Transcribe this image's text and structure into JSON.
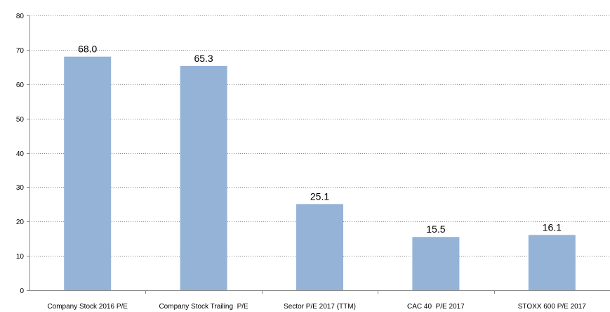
{
  "chart_data": {
    "type": "bar",
    "categories": [
      "Company Stock 2016 P/E",
      "Company Stock Trailing  P/E",
      "Sector P/E 2017 (TTM)",
      "CAC 40  P/E 2017",
      "STOXX 600 P/E 2017"
    ],
    "values": [
      68.0,
      65.3,
      25.1,
      15.5,
      16.1
    ],
    "data_labels": [
      "68.0",
      "65.3",
      "25.1",
      "15.5",
      "16.1"
    ],
    "y_ticks": [
      0,
      10,
      20,
      30,
      40,
      50,
      60,
      70,
      80
    ],
    "ylim": [
      0,
      80
    ],
    "title": "",
    "xlabel": "",
    "ylabel": "",
    "grid": true,
    "legend": "none",
    "colors": {
      "bar": "#95b3d7",
      "grid": "#8a8a8a",
      "axis": "#8a8a8a",
      "text": "#000000"
    }
  }
}
